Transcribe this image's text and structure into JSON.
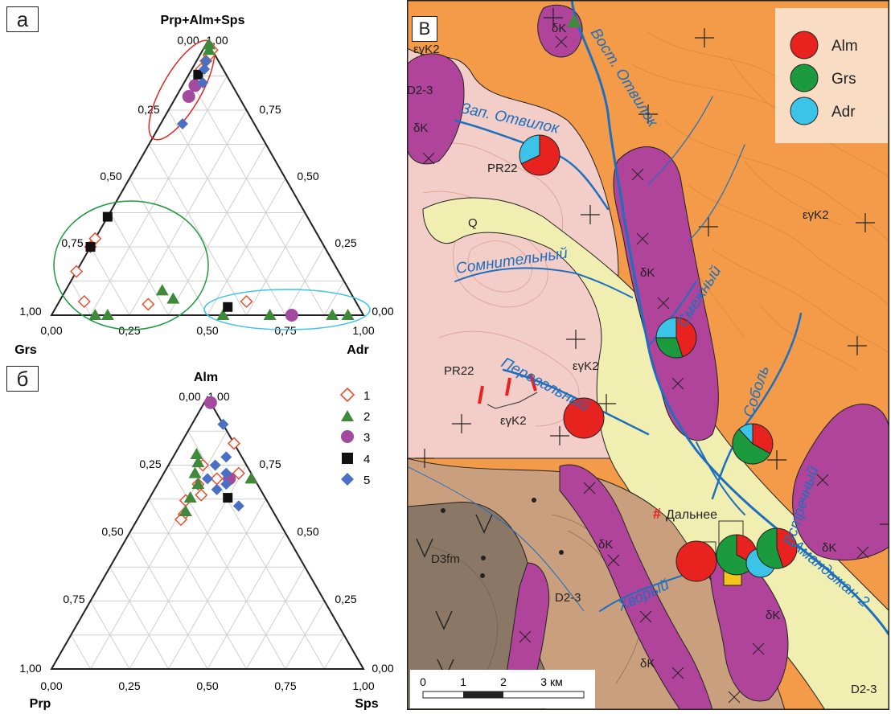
{
  "panels": {
    "a": "а",
    "b": "б",
    "v": "В"
  },
  "ternary_a": {
    "apex_top": "Prp+Alm+Sps",
    "apex_left": "Grs",
    "apex_right": "Adr",
    "top_ticks": [
      "0,00",
      "1,00"
    ],
    "left_ticks": [
      "0,25",
      "0,50",
      "0,75",
      "1,00"
    ],
    "right_ticks": [
      "0,75",
      "0,50",
      "0,25",
      "0,00"
    ],
    "bottom_ticks": [
      "0,00",
      "0,25",
      "0,50",
      "0,75",
      "1,00"
    ]
  },
  "ternary_b": {
    "apex_top": "Alm",
    "apex_left": "Prp",
    "apex_right": "Sps",
    "top_ticks": [
      "0,00",
      "1,00"
    ],
    "left_ticks": [
      "0,25",
      "0,50",
      "0,75",
      "1,00"
    ],
    "right_ticks": [
      "0,75",
      "0,50",
      "0,25",
      "0,00"
    ],
    "bottom_ticks": [
      "0,00",
      "0,25",
      "0,50",
      "0,75",
      "1,00"
    ]
  },
  "legend_left": [
    "1",
    "2",
    "3",
    "4",
    "5"
  ],
  "map": {
    "legend": [
      "Alm",
      "Grs",
      "Adr"
    ],
    "colors": {
      "alm": "#e8231f",
      "grs": "#1c9a3e",
      "adr": "#3cc3e8",
      "granite": "#f39b49",
      "diorite": "#b0449a",
      "pink": "#f3cdc8",
      "quat": "#f1eeb2",
      "devon": "#c99f7e",
      "fm": "#8b7766",
      "river": "#1d6fbf"
    },
    "streams": [
      "Вост. Отвилок",
      "Зап. Отвилок",
      "Сомнительный",
      "Смежный",
      "Перевальный",
      "Соболь",
      "Встречный",
      "Хворый",
      "Амандыкан-2"
    ],
    "units": [
      "εγK2",
      "δK",
      "D2-3",
      "PR22",
      "Q",
      "D3fm"
    ],
    "deposit": "Дальнее",
    "scale": [
      "0",
      "1",
      "2",
      "3 км"
    ]
  },
  "chart_data": [
    {
      "type": "scatter",
      "title": "",
      "axes": [
        "Prp+Alm+Sps",
        "Grs",
        "Adr"
      ],
      "series": [
        {
          "name": "1",
          "points": [
            [
              0.97,
              0.0,
              0.03
            ],
            [
              0.95,
              0.02,
              0.03
            ],
            [
              0.93,
              0.04,
              0.03
            ],
            [
              0.9,
              0.07,
              0.03
            ],
            [
              0.28,
              0.72,
              0.0
            ],
            [
              0.25,
              0.75,
              0.0
            ],
            [
              0.16,
              0.84,
              0.0
            ],
            [
              0.05,
              0.87,
              0.08
            ],
            [
              0.04,
              0.67,
              0.29
            ],
            [
              0.05,
              0.35,
              0.6
            ]
          ]
        },
        {
          "name": "2",
          "points": [
            [
              0.99,
              0.0,
              0.01
            ],
            [
              0.97,
              0.01,
              0.02
            ],
            [
              0.0,
              0.82,
              0.18
            ],
            [
              0.0,
              0.86,
              0.14
            ],
            [
              0.09,
              0.6,
              0.31
            ],
            [
              0.06,
              0.58,
              0.36
            ],
            [
              0.0,
              0.45,
              0.55
            ],
            [
              0.0,
              0.3,
              0.7
            ],
            [
              0.0,
              0.1,
              0.9
            ],
            [
              0.0,
              0.05,
              0.95
            ]
          ]
        },
        {
          "name": "3",
          "points": [
            [
              0.84,
              0.12,
              0.04
            ],
            [
              0.8,
              0.16,
              0.04
            ],
            [
              0.0,
              0.23,
              0.77
            ]
          ]
        },
        {
          "name": "4",
          "points": [
            [
              0.88,
              0.09,
              0.03
            ],
            [
              0.36,
              0.64,
              0.0
            ],
            [
              0.25,
              0.75,
              0.0
            ],
            [
              0.03,
              0.42,
              0.55
            ]
          ]
        },
        {
          "name": "5",
          "points": [
            [
              0.93,
              0.04,
              0.03
            ],
            [
              0.9,
              0.06,
              0.04
            ],
            [
              0.85,
              0.09,
              0.06
            ],
            [
              0.7,
              0.23,
              0.07
            ]
          ]
        }
      ]
    },
    {
      "type": "scatter",
      "title": "",
      "axes": [
        "Alm",
        "Prp",
        "Sps"
      ],
      "series": [
        {
          "name": "1",
          "points": [
            [
              0.83,
              0.0,
              0.17
            ],
            [
              0.75,
              0.14,
              0.11
            ],
            [
              0.72,
              0.04,
              0.24
            ],
            [
              0.7,
              0.12,
              0.18
            ],
            [
              0.68,
              0.19,
              0.13
            ],
            [
              0.64,
              0.2,
              0.16
            ],
            [
              0.62,
              0.26,
              0.12
            ],
            [
              0.57,
              0.29,
              0.14
            ],
            [
              0.55,
              0.31,
              0.14
            ]
          ]
        },
        {
          "name": "2",
          "points": [
            [
              0.79,
              0.14,
              0.07
            ],
            [
              0.76,
              0.15,
              0.09
            ],
            [
              0.72,
              0.18,
              0.1
            ],
            [
              0.7,
              0.01,
              0.29
            ],
            [
              0.68,
              0.19,
              0.13
            ],
            [
              0.63,
              0.24,
              0.13
            ],
            [
              0.58,
              0.28,
              0.14
            ]
          ]
        },
        {
          "name": "3",
          "points": [
            [
              0.98,
              0.0,
              0.02
            ],
            [
              0.7,
              0.08,
              0.22
            ]
          ]
        },
        {
          "name": "4",
          "points": [
            [
              0.63,
              0.12,
              0.25
            ]
          ]
        },
        {
          "name": "5",
          "points": [
            [
              0.9,
              0.0,
              0.1
            ],
            [
              0.78,
              0.05,
              0.17
            ],
            [
              0.75,
              0.1,
              0.15
            ],
            [
              0.72,
              0.08,
              0.2
            ],
            [
              0.7,
              0.15,
              0.15
            ],
            [
              0.68,
              0.1,
              0.22
            ],
            [
              0.66,
              0.14,
              0.2
            ],
            [
              0.6,
              0.1,
              0.3
            ]
          ]
        }
      ]
    }
  ]
}
